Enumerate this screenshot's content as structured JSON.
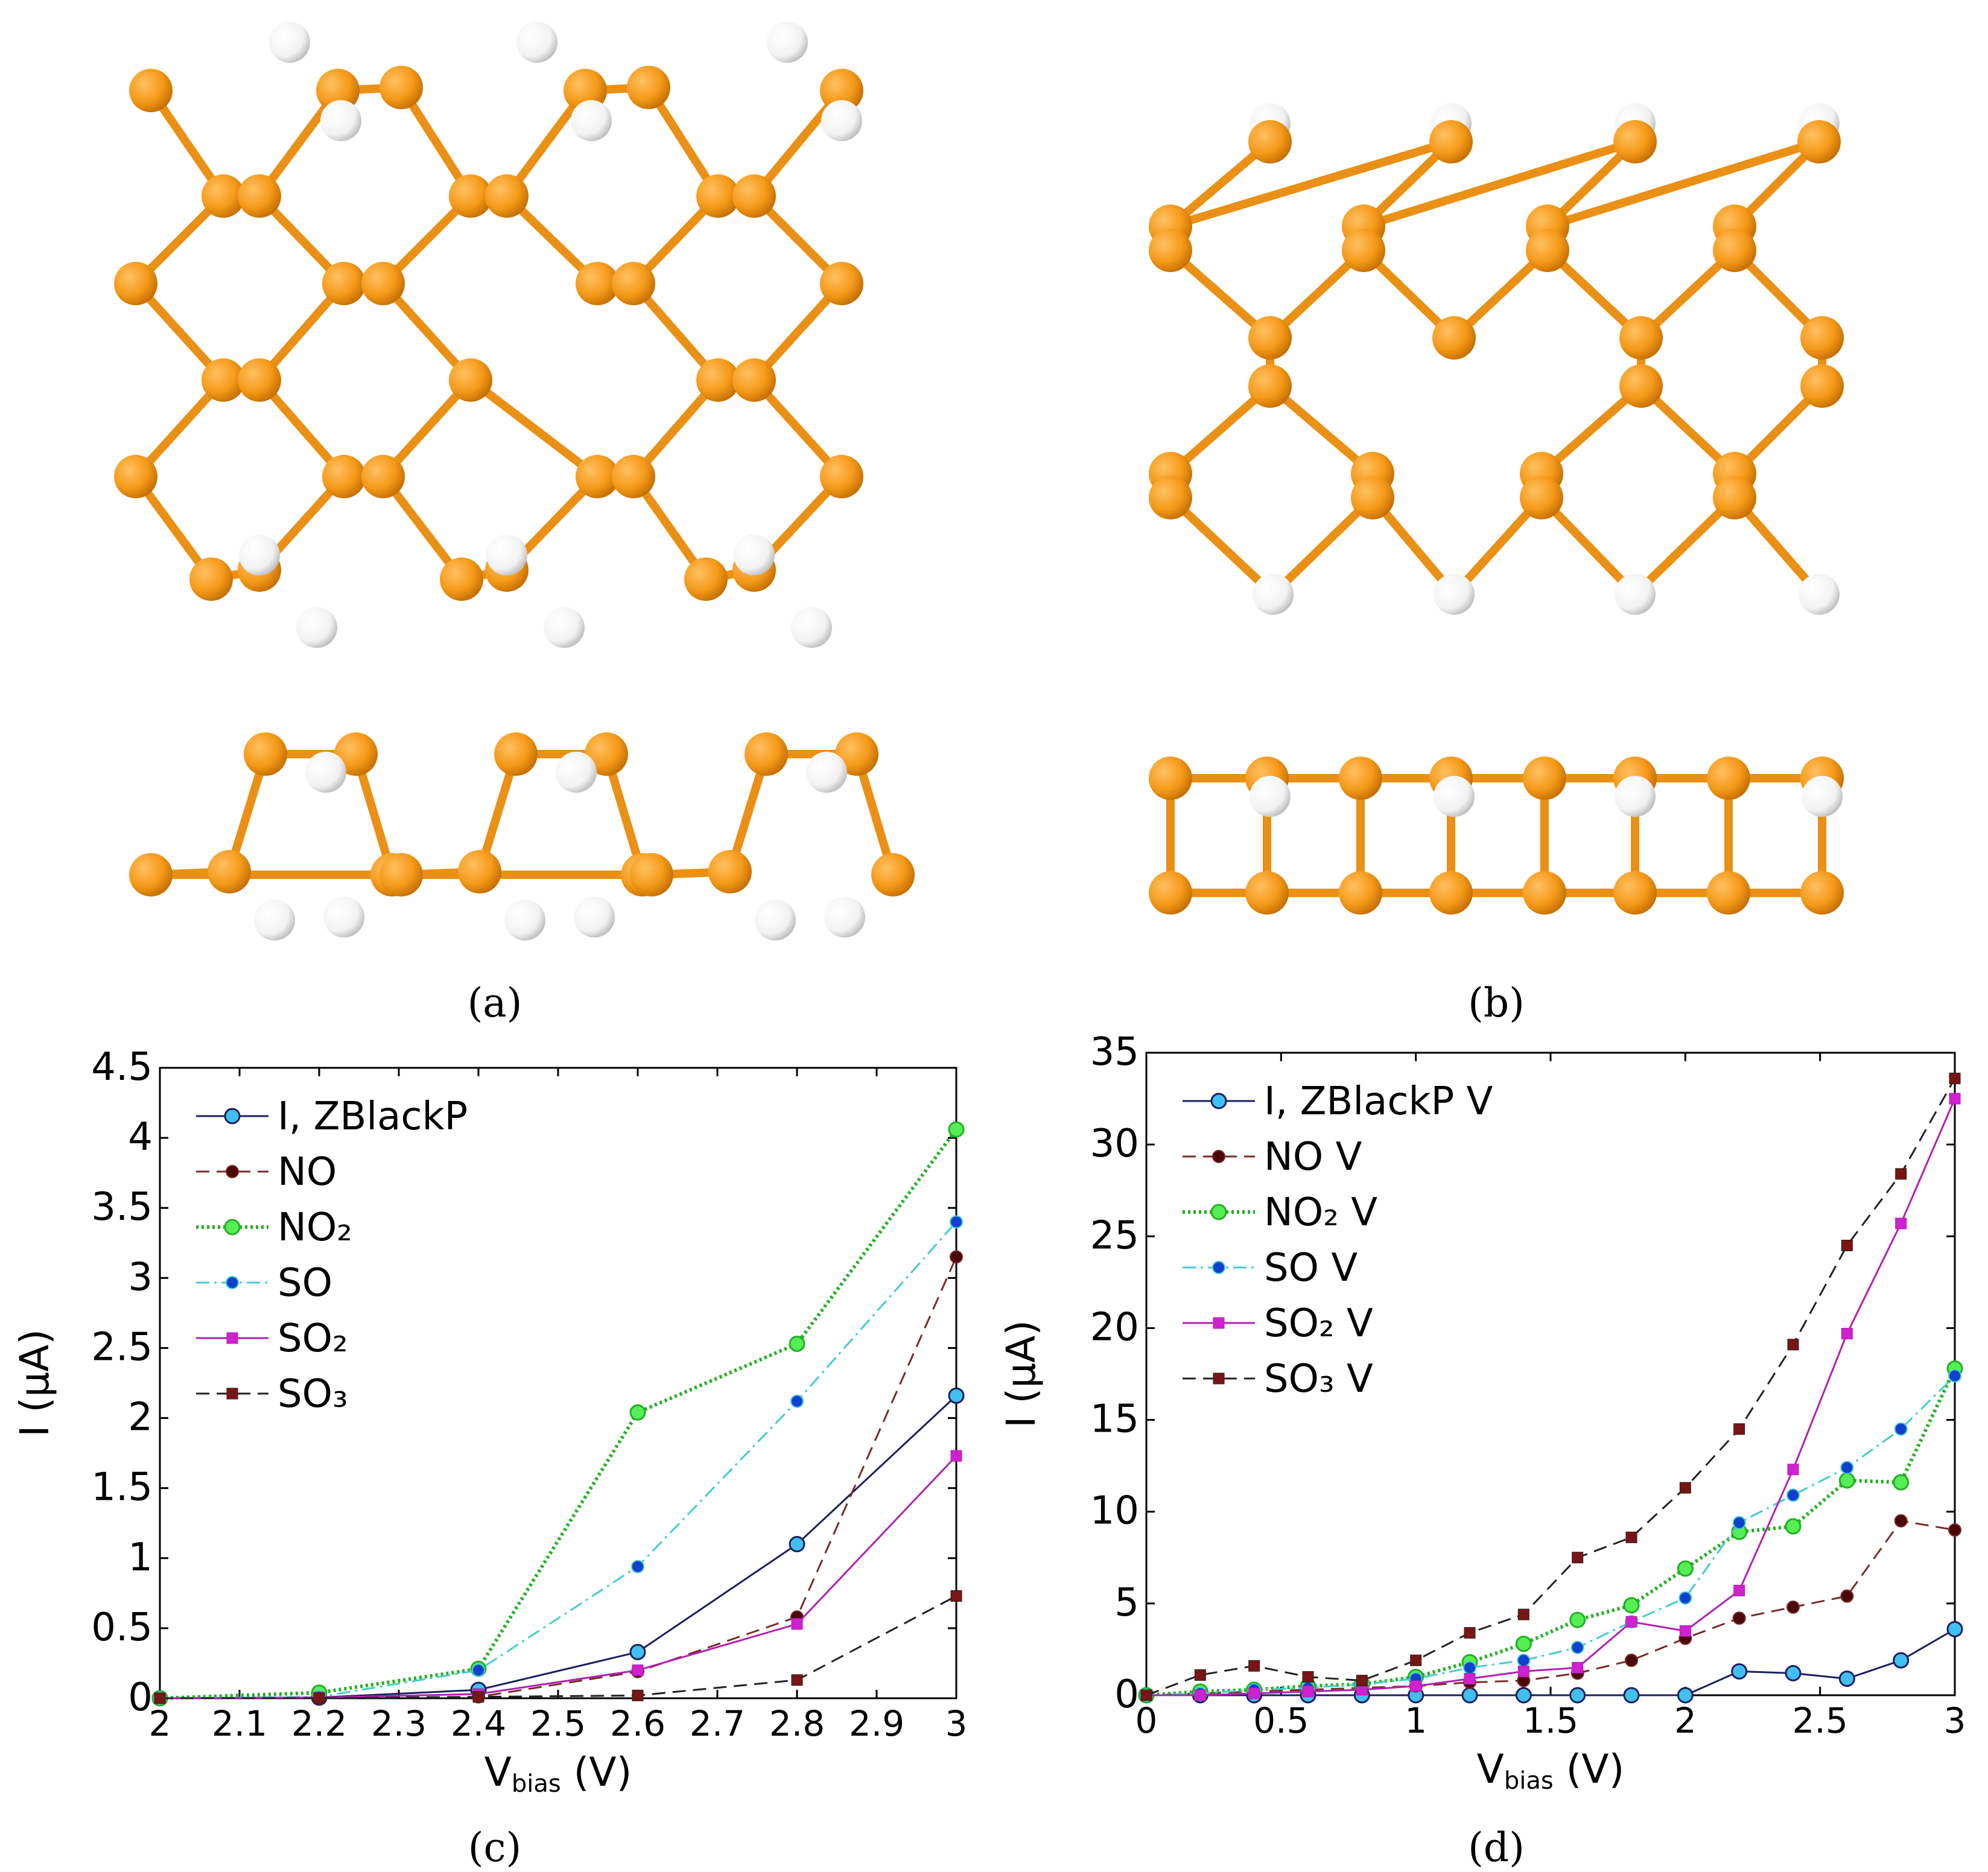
{
  "panels": {
    "a": {
      "caption": "(a)"
    },
    "b": {
      "caption": "(b)"
    },
    "c": {
      "caption": "(c)"
    },
    "d": {
      "caption": "(d)"
    }
  },
  "colors": {
    "phosphorus": "#f59a1a",
    "phosphorus_dark": "#c46e00",
    "bond": "#ea9015",
    "hydrogen": "#ffffff",
    "hydrogen_edge": "#bdbdbd"
  },
  "chart_data": [
    {
      "panel": "c",
      "type": "line",
      "xlabel_main": "V",
      "xlabel_sub": "bias",
      "xlabel_unit": "(V)",
      "ylabel": "I (μA)",
      "xlim": [
        2,
        3
      ],
      "ylim": [
        0,
        4.5
      ],
      "xticks": [
        "2",
        "2.1",
        "2.2",
        "2.3",
        "2.4",
        "2.5",
        "2.6",
        "2.7",
        "2.8",
        "2.9",
        "3"
      ],
      "yticks": [
        "0",
        "0.5",
        "1",
        "1.5",
        "2",
        "2.5",
        "3",
        "3.5",
        "4",
        "4.5"
      ],
      "grid": false,
      "legend_position": "top-left",
      "x": [
        2,
        2.2,
        2.4,
        2.6,
        2.8,
        3
      ],
      "series": [
        {
          "name": "I, ZBlackP",
          "color": "#1a1f5e",
          "marker": "circle",
          "marker_fill": "#3fc0f0",
          "dash": "",
          "width": 3,
          "values": [
            0,
            0.005,
            0.06,
            0.33,
            1.1,
            2.16
          ]
        },
        {
          "name": "NO",
          "color": "#7a2a2a",
          "marker": "dot",
          "marker_fill": "#4a0808",
          "dash": "22,12",
          "width": 3,
          "values": [
            0,
            0.002,
            0.01,
            0.19,
            0.58,
            3.15
          ]
        },
        {
          "name": "NO₂",
          "color": "#22b022",
          "marker": "circle",
          "marker_fill": "#55ee55",
          "dash": "4,5",
          "width": 6,
          "values": [
            0,
            0.04,
            0.21,
            2.04,
            2.53,
            4.06
          ]
        },
        {
          "name": "SO",
          "color": "#44cccc",
          "marker": "dot",
          "marker_fill": "#1040d0",
          "dash": "22,8,4,8",
          "width": 3,
          "values": [
            0,
            0.01,
            0.2,
            0.94,
            2.12,
            3.4
          ]
        },
        {
          "name": "SO₂",
          "color": "#b020b0",
          "marker": "square",
          "marker_fill": "#d020d0",
          "dash": "",
          "width": 3,
          "values": [
            0,
            0.005,
            0.03,
            0.2,
            0.53,
            1.73
          ]
        },
        {
          "name": "SO₃",
          "color": "#222222",
          "marker": "square",
          "marker_fill": "#7a1515",
          "dash": "22,12",
          "width": 3,
          "values": [
            0,
            0,
            0.01,
            0.02,
            0.13,
            0.73
          ]
        }
      ]
    },
    {
      "panel": "d",
      "type": "line",
      "xlabel_main": "V",
      "xlabel_sub": "bias",
      "xlabel_unit": "(V)",
      "ylabel": "I (μA)",
      "xlim": [
        0,
        3
      ],
      "ylim": [
        0,
        35
      ],
      "xticks": [
        "0",
        "0.5",
        "1",
        "1.5",
        "2",
        "2.5",
        "3"
      ],
      "yticks": [
        "0",
        "5",
        "10",
        "15",
        "20",
        "25",
        "30",
        "35"
      ],
      "grid": false,
      "legend_position": "top-left",
      "x": [
        0,
        0.2,
        0.4,
        0.6,
        0.8,
        1.0,
        1.2,
        1.4,
        1.6,
        1.8,
        2.0,
        2.2,
        2.4,
        2.6,
        2.8,
        3.0
      ],
      "series": [
        {
          "name": "I, ZBlackP V",
          "color": "#1a1f5e",
          "marker": "circle",
          "marker_fill": "#3fc0f0",
          "dash": "",
          "width": 3,
          "values": [
            0,
            0,
            0,
            0,
            0,
            0,
            0,
            0,
            0,
            0,
            0,
            1.3,
            1.2,
            0.9,
            1.9,
            3.6
          ]
        },
        {
          "name": "NO V",
          "color": "#7a2a2a",
          "marker": "dot",
          "marker_fill": "#4a0808",
          "dash": "22,12",
          "width": 3,
          "values": [
            0,
            0.1,
            0.2,
            0.3,
            0.4,
            0.5,
            0.7,
            0.8,
            1.2,
            1.9,
            3.1,
            4.2,
            4.8,
            5.4,
            9.5,
            9.0
          ]
        },
        {
          "name": "NO₂ V",
          "color": "#22b022",
          "marker": "circle",
          "marker_fill": "#55ee55",
          "dash": "4,5",
          "width": 6,
          "values": [
            0,
            0.2,
            0.3,
            0.5,
            0.6,
            1.0,
            1.8,
            2.8,
            4.1,
            4.9,
            6.9,
            8.9,
            9.2,
            11.7,
            11.6,
            17.8
          ]
        },
        {
          "name": "SO V",
          "color": "#44cccc",
          "marker": "dot",
          "marker_fill": "#1040d0",
          "dash": "22,8,4,8",
          "width": 3,
          "values": [
            0,
            0.1,
            0.3,
            0.4,
            0.6,
            0.9,
            1.5,
            1.9,
            2.6,
            4.0,
            5.3,
            9.4,
            10.9,
            12.4,
            14.5,
            17.4
          ]
        },
        {
          "name": "SO₂ V",
          "color": "#b020b0",
          "marker": "square",
          "marker_fill": "#d020d0",
          "dash": "",
          "width": 3,
          "values": [
            0,
            0,
            0.1,
            0.2,
            0.3,
            0.5,
            0.9,
            1.3,
            1.5,
            4.0,
            3.5,
            5.7,
            12.3,
            19.7,
            25.7,
            32.5
          ]
        },
        {
          "name": "SO₃ V",
          "color": "#222222",
          "marker": "square",
          "marker_fill": "#7a1515",
          "dash": "22,12",
          "width": 3,
          "values": [
            0,
            1.1,
            1.6,
            1.0,
            0.8,
            1.9,
            3.4,
            4.4,
            7.5,
            8.6,
            11.3,
            14.5,
            19.1,
            24.5,
            28.4,
            33.6
          ]
        }
      ]
    }
  ]
}
